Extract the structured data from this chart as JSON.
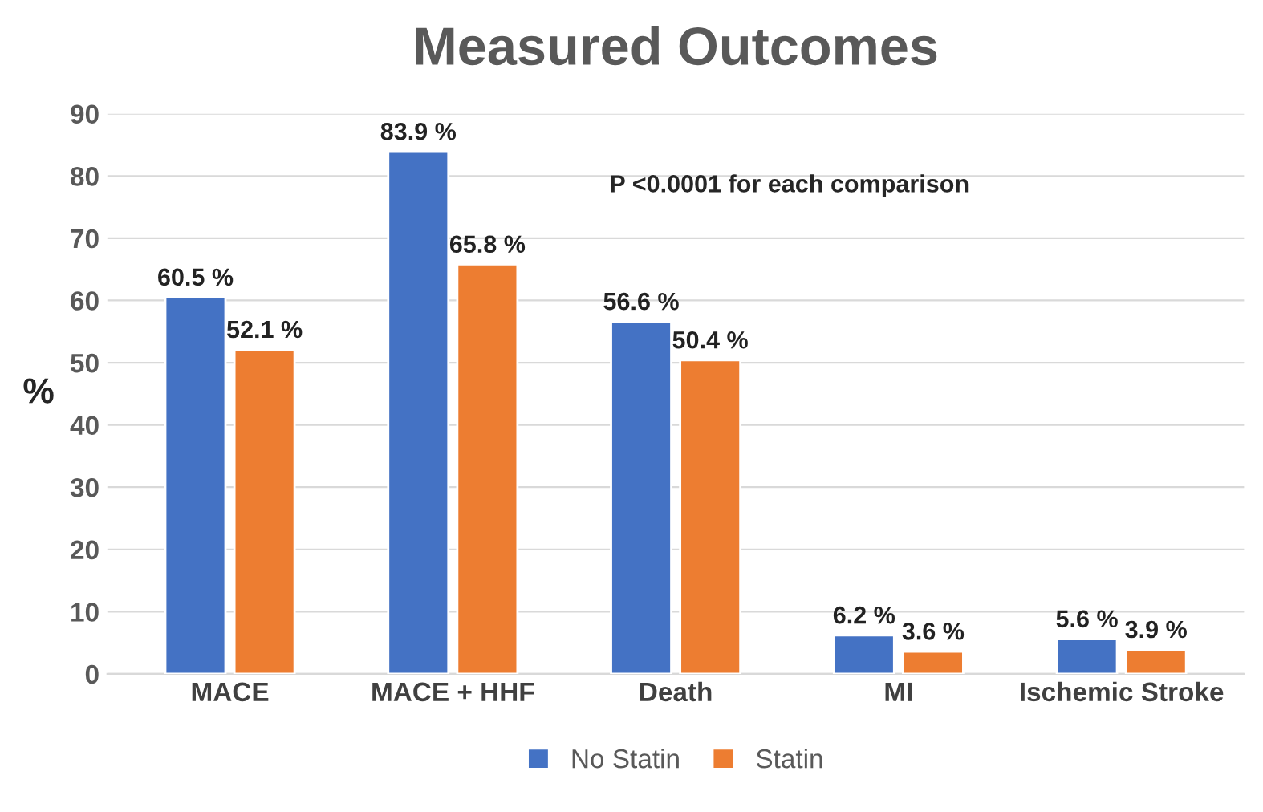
{
  "chart_data": {
    "type": "bar",
    "title": "Measured Outcomes",
    "ylabel": "%",
    "categories": [
      "MACE",
      "MACE + HHF",
      "Death",
      "MI",
      "Ischemic Stroke"
    ],
    "series": [
      {
        "name": "No Statin",
        "color": "#4472c4",
        "values": [
          60.5,
          83.9,
          56.6,
          6.2,
          5.6
        ],
        "value_labels": [
          "60.5 %",
          "83.9 %",
          "56.6 %",
          "6.2 %",
          "5.6 %"
        ]
      },
      {
        "name": "Statin",
        "color": "#ed7d31",
        "values": [
          52.1,
          65.8,
          50.4,
          3.6,
          3.9
        ],
        "value_labels": [
          "52.1 %",
          "65.8 %",
          "50.4 %",
          "3.6 %",
          "3.9 %"
        ]
      }
    ],
    "ylim": [
      0,
      90
    ],
    "yticks": [
      0,
      10,
      20,
      30,
      40,
      50,
      60,
      70,
      80,
      90
    ],
    "grid": "y",
    "legend": "bottom",
    "annotations": [
      "P <0.0001 for each comparison"
    ]
  }
}
